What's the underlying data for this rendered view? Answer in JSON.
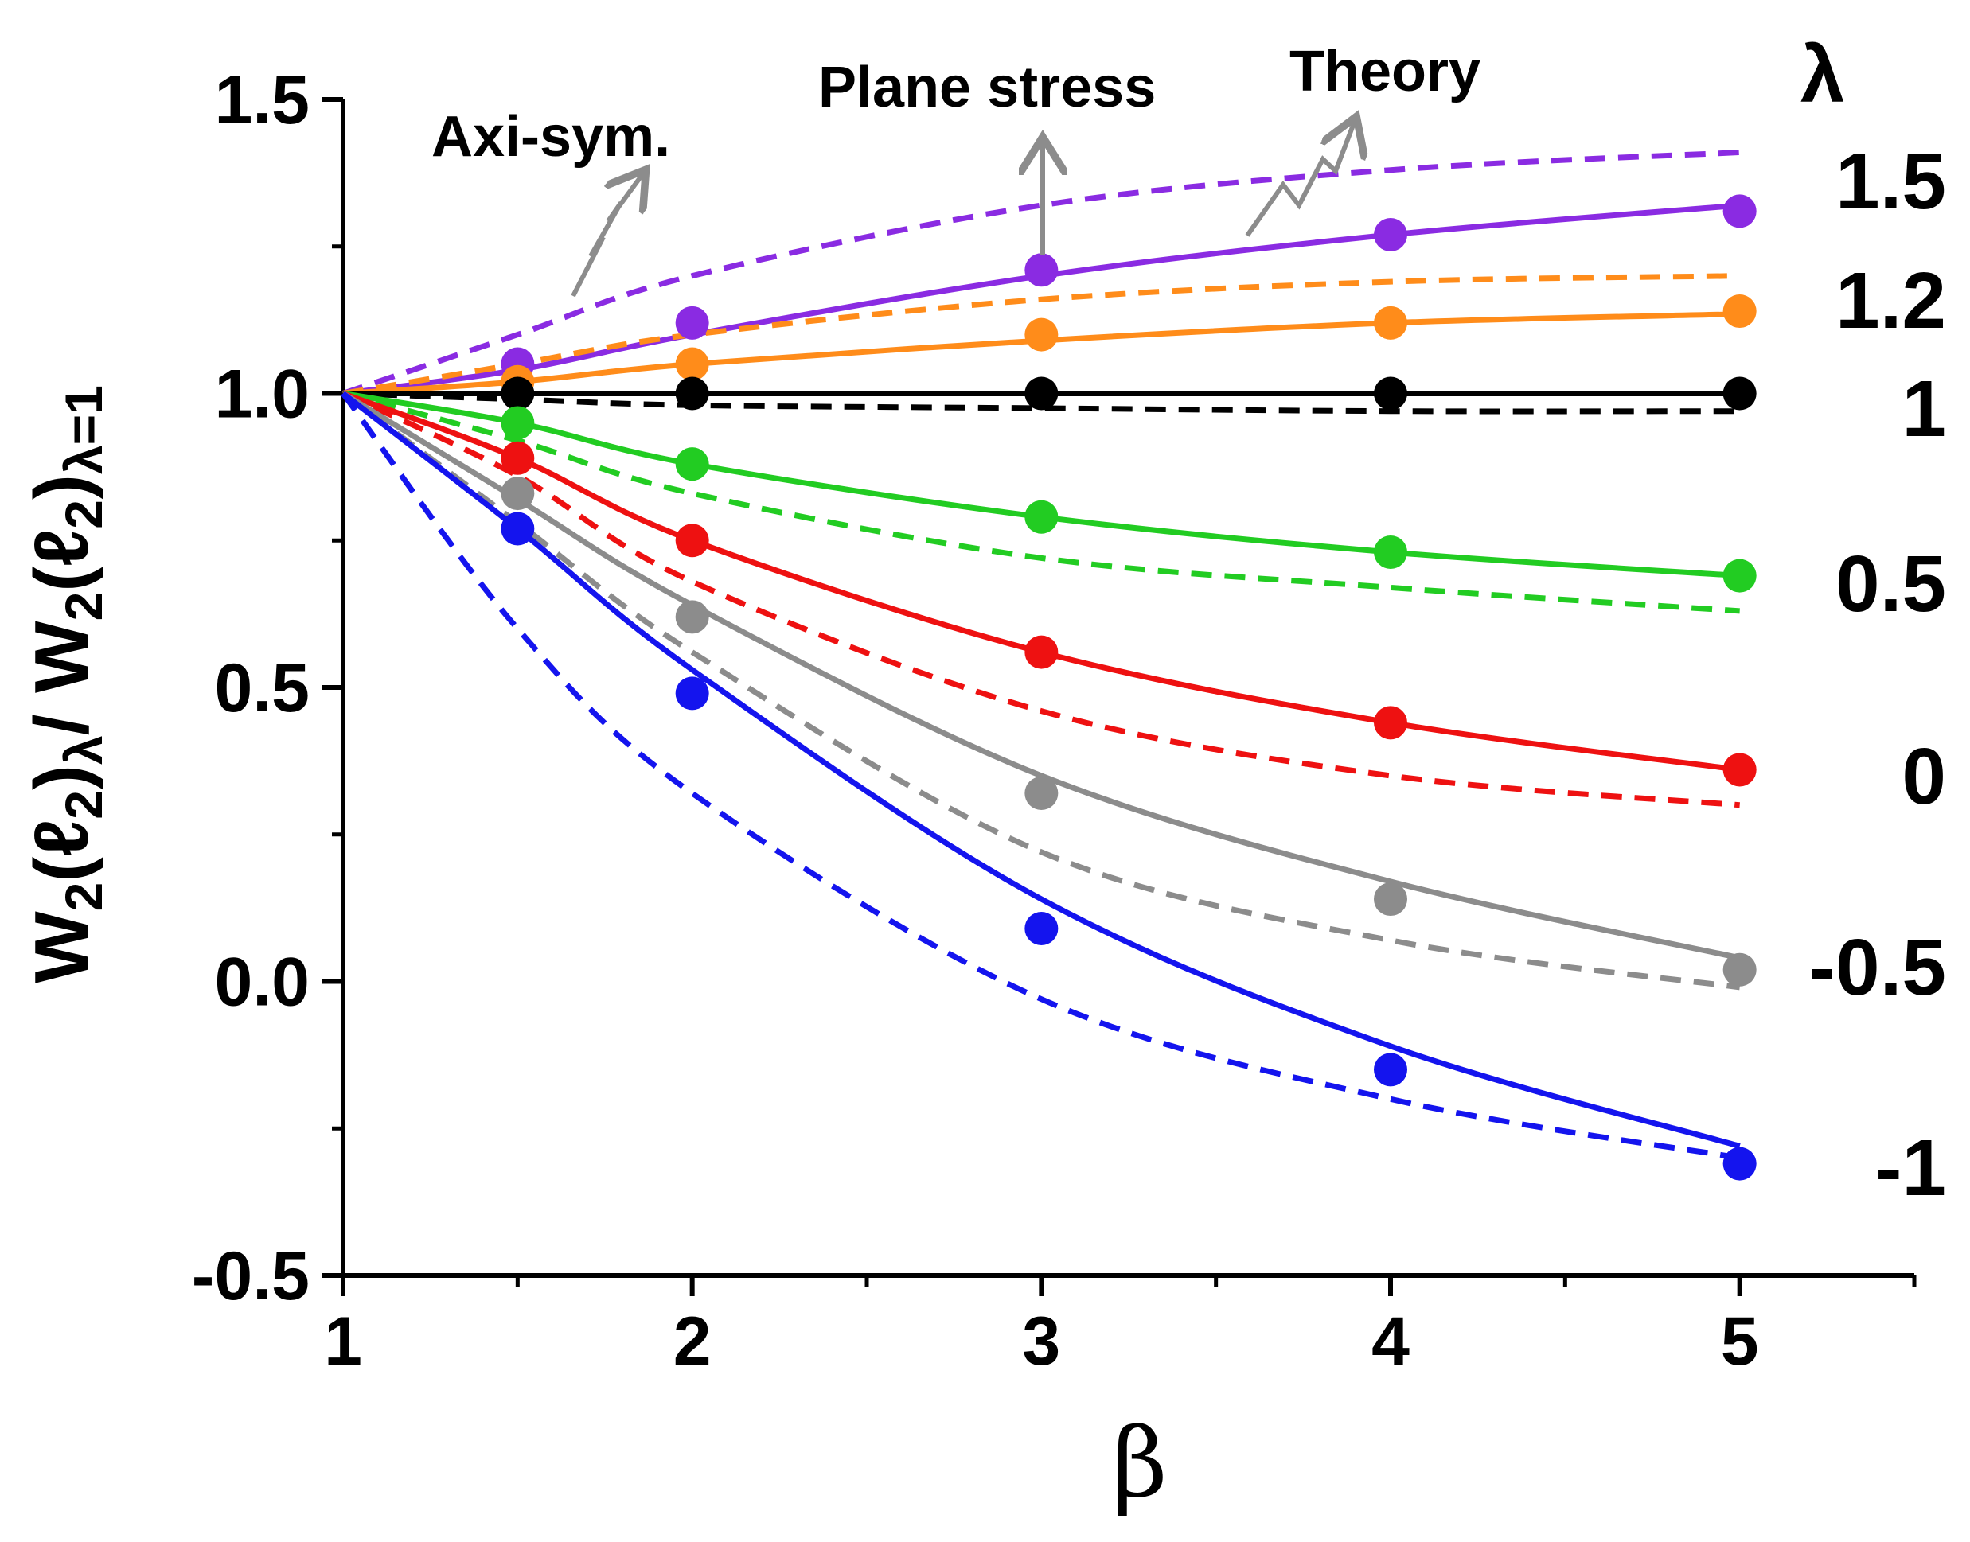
{
  "chart_data": {
    "type": "line",
    "title": "",
    "xlabel": "β",
    "ylabel": {
      "parts": [
        "W",
        "2",
        "(ℓ",
        "2",
        ")",
        "λ",
        "/ W",
        "2",
        "(ℓ",
        "2",
        ")",
        "λ=1"
      ]
    },
    "xlim": [
      1,
      5.5
    ],
    "ylim": [
      -0.5,
      1.5
    ],
    "x_ticks": [
      1,
      2,
      3,
      4,
      5
    ],
    "x_minor_ticks": [
      1.5,
      2.5,
      3.5,
      4.5,
      5.5
    ],
    "y_ticks": [
      -0.5,
      0.0,
      0.5,
      1.0,
      1.5
    ],
    "y_minor_ticks": [
      -0.25,
      0.25,
      0.75,
      1.25
    ],
    "x_tick_labels": [
      "1",
      "2",
      "3",
      "4",
      "5"
    ],
    "y_tick_labels": [
      "-0.5",
      "0.0",
      "0.5",
      "1.0",
      "1.5"
    ],
    "legend_title": "λ",
    "annotations": [
      "Axi-sym.",
      "Plane stress",
      "Theory"
    ],
    "series": [
      {
        "name": "λ = 1.5",
        "label": "1.5",
        "color": "#8a2be2",
        "points_x": [
          1.5,
          2,
          3,
          4,
          5
        ],
        "points_y": [
          1.05,
          1.12,
          1.21,
          1.27,
          1.31
        ],
        "solid_y": [
          1.0,
          1.04,
          1.1,
          1.2,
          1.27,
          1.32
        ],
        "dashed_y": [
          1.0,
          1.1,
          1.2,
          1.32,
          1.38,
          1.41
        ]
      },
      {
        "name": "λ = 1.2",
        "label": "1.2",
        "color": "#ff8c1a",
        "points_x": [
          1.5,
          2,
          3,
          4,
          5
        ],
        "points_y": [
          1.02,
          1.05,
          1.1,
          1.12,
          1.14
        ],
        "solid_y": [
          1.0,
          1.02,
          1.05,
          1.09,
          1.12,
          1.135
        ],
        "dashed_y": [
          1.0,
          1.05,
          1.1,
          1.16,
          1.19,
          1.2
        ]
      },
      {
        "name": "λ = 1",
        "label": "1",
        "color": "#000000",
        "points_x": [
          1.5,
          2,
          3,
          4,
          5
        ],
        "points_y": [
          1.0,
          1.0,
          1.0,
          1.0,
          1.0
        ],
        "solid_y": [
          1.0,
          1.0,
          1.0,
          1.0,
          1.0,
          1.0
        ],
        "dashed_y": [
          1.0,
          0.99,
          0.98,
          0.975,
          0.97,
          0.97
        ]
      },
      {
        "name": "λ = 0.5",
        "label": "0.5",
        "color": "#22cc22",
        "points_x": [
          1.5,
          2,
          3,
          4,
          5
        ],
        "points_y": [
          0.95,
          0.88,
          0.79,
          0.73,
          0.69
        ],
        "solid_y": [
          1.0,
          0.95,
          0.88,
          0.79,
          0.73,
          0.69
        ],
        "dashed_y": [
          1.0,
          0.92,
          0.83,
          0.72,
          0.67,
          0.63
        ]
      },
      {
        "name": "λ = 0",
        "label": "0",
        "color": "#ee1111",
        "points_x": [
          1.5,
          2,
          3,
          4,
          5
        ],
        "points_y": [
          0.89,
          0.75,
          0.56,
          0.44,
          0.36
        ],
        "solid_y": [
          1.0,
          0.89,
          0.75,
          0.56,
          0.44,
          0.36
        ],
        "dashed_y": [
          1.0,
          0.86,
          0.68,
          0.46,
          0.35,
          0.3
        ]
      },
      {
        "name": "λ = -0.5",
        "label": "-0.5",
        "color": "#8c8c8c",
        "points_x": [
          1.5,
          2,
          3,
          4,
          5
        ],
        "points_y": [
          0.83,
          0.62,
          0.32,
          0.14,
          0.02
        ],
        "solid_y": [
          1.0,
          0.82,
          0.64,
          0.35,
          0.17,
          0.04
        ],
        "dashed_y": [
          1.0,
          0.78,
          0.56,
          0.22,
          0.07,
          -0.01
        ]
      },
      {
        "name": "λ = -1",
        "label": "-1",
        "color": "#1414ee",
        "points_x": [
          1.5,
          2,
          3,
          4,
          5
        ],
        "points_y": [
          0.77,
          0.49,
          0.09,
          -0.15,
          -0.31
        ],
        "solid_y": [
          1.0,
          0.77,
          0.53,
          0.14,
          -0.11,
          -0.28
        ],
        "dashed_y": [
          1.0,
          0.6,
          0.32,
          -0.03,
          -0.2,
          -0.3
        ]
      }
    ],
    "curve_x": [
      1,
      1.5,
      2,
      3,
      4,
      5
    ]
  }
}
